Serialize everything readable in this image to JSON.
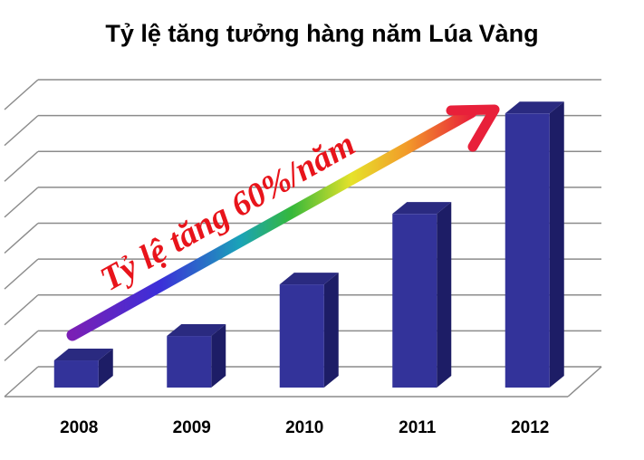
{
  "chart_data": {
    "type": "bar",
    "title": "Tỷ lệ tăng tưởng hàng năm Lúa Vàng",
    "categories": [
      "2008",
      "2009",
      "2010",
      "2011",
      "2012"
    ],
    "values": [
      1,
      1.9,
      3.8,
      6.4,
      10.1
    ],
    "ylim": [
      0,
      11
    ],
    "grid": true,
    "bar_color": "#33339a",
    "annotation": "Tỷ lệ tăng  60%/năm",
    "annotation_color": "#e8141b",
    "xlabel": "",
    "ylabel": ""
  }
}
